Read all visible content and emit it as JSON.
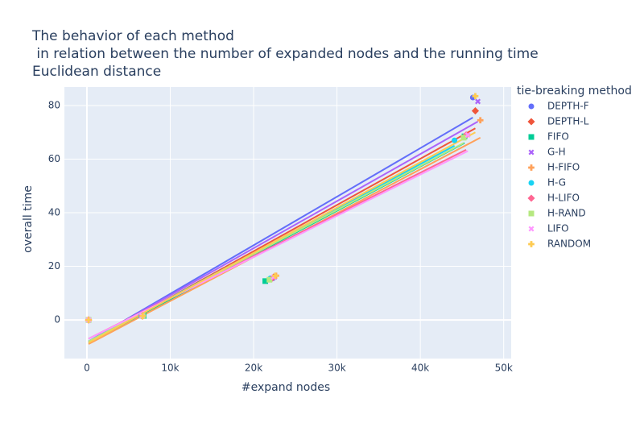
{
  "chart_data": {
    "type": "scatter",
    "title": [
      "The behavior of each method",
      " in relation between the number of expanded nodes and the running time",
      "Euclidean distance"
    ],
    "x_label": "#expand nodes",
    "y_label": "overall time",
    "legend_title": "tie-breaking method",
    "grid": true,
    "xlim": [
      -2700,
      50900
    ],
    "ylim": [
      -14.4,
      86.9
    ],
    "xticks": [
      0,
      {
        "value": 10000,
        "label": "10k"
      },
      {
        "value": 20000,
        "label": "20k"
      },
      {
        "value": 30000,
        "label": "30k"
      },
      {
        "value": 40000,
        "label": "40k"
      },
      {
        "value": 50000,
        "label": "50k"
      }
    ],
    "yticks": [
      0,
      20,
      40,
      60,
      80
    ],
    "series": [
      {
        "name": "DEPTH-F",
        "color": "#636efa",
        "symbol": "circle",
        "x": [
          200,
          6600,
          22300,
          46300
        ],
        "values": [
          0,
          1.5,
          15.5,
          83
        ],
        "trendline": [
          -8,
          75.5
        ]
      },
      {
        "name": "DEPTH-L",
        "color": "#EF553B",
        "symbol": "diamond",
        "x": [
          200,
          6700,
          22400,
          46600
        ],
        "values": [
          0,
          1.5,
          16,
          78
        ],
        "trendline": [
          -8.5,
          71.5
        ]
      },
      {
        "name": "FIFO",
        "color": "#00cc96",
        "symbol": "square",
        "x": [
          200,
          6800,
          21400,
          45300
        ],
        "values": [
          0,
          1.5,
          14.5,
          68.5
        ],
        "trendline": [
          -8.5,
          66
        ]
      },
      {
        "name": "G-H",
        "color": "#ab63fa",
        "symbol": "x",
        "x": [
          200,
          6600,
          22500,
          46900
        ],
        "values": [
          0,
          1.5,
          16,
          81.5
        ],
        "trendline": [
          -8,
          74
        ]
      },
      {
        "name": "H-FIFO",
        "color": "#FFA15A",
        "symbol": "cross",
        "x": [
          200,
          6700,
          22700,
          47200
        ],
        "values": [
          0,
          1.5,
          16.5,
          74.5
        ],
        "trendline": [
          -9,
          68
        ]
      },
      {
        "name": "H-G",
        "color": "#19d3f3",
        "symbol": "circle",
        "x": [
          200,
          6500,
          22000,
          44100
        ],
        "values": [
          0,
          1.5,
          15.5,
          67
        ],
        "trendline": [
          -8,
          65
        ]
      },
      {
        "name": "H-LIFO",
        "color": "#FF6692",
        "symbol": "diamond",
        "x": [
          200,
          6600,
          22200,
          45500
        ],
        "values": [
          0,
          1.5,
          15.5,
          69
        ],
        "trendline": [
          -7,
          63.5
        ]
      },
      {
        "name": "H-RAND",
        "color": "#B6E880",
        "symbol": "square",
        "x": [
          200,
          6700,
          21900,
          45200
        ],
        "values": [
          0,
          1.5,
          15,
          68
        ],
        "trendline": [
          -8,
          66
        ]
      },
      {
        "name": "LIFO",
        "color": "#FF97FF",
        "symbol": "x",
        "x": [
          200,
          6600,
          22400,
          45700
        ],
        "values": [
          0,
          1.5,
          16,
          69
        ],
        "trendline": [
          -7,
          63
        ]
      },
      {
        "name": "RANDOM",
        "color": "#FECB52",
        "symbol": "cross",
        "x": [
          200,
          6700,
          22600,
          46600
        ],
        "values": [
          0,
          1.5,
          16.5,
          83.5
        ],
        "trendline": [
          -8.5,
          70
        ]
      }
    ]
  }
}
